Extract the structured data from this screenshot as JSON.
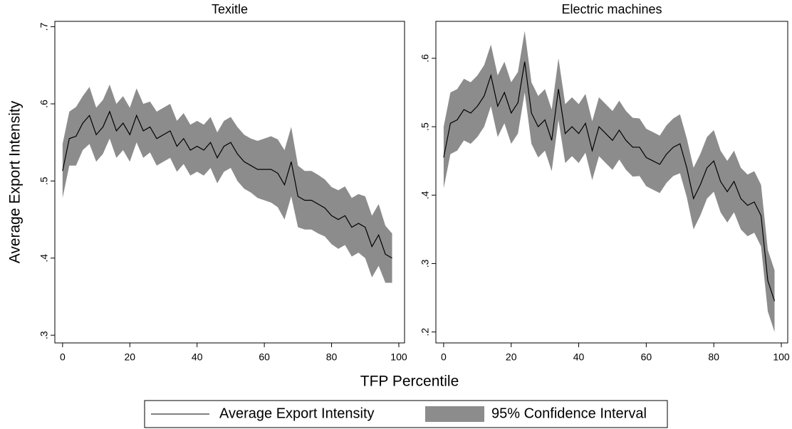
{
  "xlabel": "TFP Percentile",
  "ylabel": "Average Export Intensity",
  "chart_data": [
    {
      "type": "line-band",
      "title": "Texitle",
      "x": [
        0,
        2,
        4,
        6,
        8,
        10,
        12,
        14,
        16,
        18,
        20,
        22,
        24,
        26,
        28,
        30,
        32,
        34,
        36,
        38,
        40,
        42,
        44,
        46,
        48,
        50,
        52,
        54,
        56,
        58,
        60,
        62,
        64,
        66,
        68,
        70,
        72,
        74,
        76,
        78,
        80,
        82,
        84,
        86,
        88,
        90,
        92,
        94,
        96,
        98
      ],
      "series": [
        {
          "name": "Average Export Intensity",
          "color": "#000000",
          "values": [
            0.513,
            0.555,
            0.558,
            0.575,
            0.585,
            0.56,
            0.57,
            0.59,
            0.565,
            0.575,
            0.56,
            0.585,
            0.565,
            0.57,
            0.555,
            0.56,
            0.565,
            0.545,
            0.555,
            0.54,
            0.545,
            0.54,
            0.55,
            0.53,
            0.545,
            0.55,
            0.535,
            0.525,
            0.52,
            0.515,
            0.515,
            0.515,
            0.51,
            0.495,
            0.525,
            0.48,
            0.475,
            0.475,
            0.47,
            0.465,
            0.455,
            0.45,
            0.455,
            0.44,
            0.445,
            0.44,
            0.415,
            0.43,
            0.405,
            0.4
          ]
        },
        {
          "name": "95% Confidence Interval",
          "color": "#8c8c8c",
          "lower": [
            0.478,
            0.52,
            0.52,
            0.54,
            0.548,
            0.525,
            0.535,
            0.555,
            0.53,
            0.54,
            0.525,
            0.55,
            0.53,
            0.537,
            0.52,
            0.525,
            0.53,
            0.512,
            0.522,
            0.507,
            0.512,
            0.507,
            0.517,
            0.497,
            0.512,
            0.517,
            0.5,
            0.49,
            0.485,
            0.478,
            0.475,
            0.472,
            0.466,
            0.45,
            0.48,
            0.44,
            0.437,
            0.437,
            0.432,
            0.428,
            0.418,
            0.412,
            0.417,
            0.402,
            0.407,
            0.4,
            0.375,
            0.39,
            0.368,
            0.368
          ],
          "upper": [
            0.548,
            0.59,
            0.596,
            0.61,
            0.622,
            0.595,
            0.605,
            0.625,
            0.6,
            0.61,
            0.595,
            0.62,
            0.6,
            0.603,
            0.59,
            0.595,
            0.6,
            0.578,
            0.588,
            0.573,
            0.578,
            0.573,
            0.583,
            0.563,
            0.578,
            0.583,
            0.57,
            0.56,
            0.555,
            0.552,
            0.555,
            0.558,
            0.554,
            0.54,
            0.57,
            0.52,
            0.513,
            0.513,
            0.508,
            0.502,
            0.492,
            0.488,
            0.493,
            0.478,
            0.483,
            0.48,
            0.455,
            0.47,
            0.442,
            0.432
          ]
        }
      ],
      "xlim": [
        -2.3,
        101.7
      ],
      "xticks": [
        0,
        20,
        40,
        60,
        80,
        100
      ],
      "ylim": [
        0.29,
        0.707
      ],
      "yticks": [
        {
          "value": 0.3,
          "label": ".3"
        },
        {
          "value": 0.4,
          "label": ".4"
        },
        {
          "value": 0.5,
          "label": ".5"
        },
        {
          "value": 0.6,
          "label": ".6"
        },
        {
          "value": 0.7,
          "label": ".7"
        }
      ]
    },
    {
      "type": "line-band",
      "title": "Electric machines",
      "x": [
        0,
        2,
        4,
        6,
        8,
        10,
        12,
        14,
        16,
        18,
        20,
        22,
        24,
        26,
        28,
        30,
        32,
        34,
        36,
        38,
        40,
        42,
        44,
        46,
        48,
        50,
        52,
        54,
        56,
        58,
        60,
        62,
        64,
        66,
        68,
        70,
        72,
        74,
        76,
        78,
        80,
        82,
        84,
        86,
        88,
        90,
        92,
        94,
        96,
        98
      ],
      "series": [
        {
          "name": "Average Export Intensity",
          "color": "#000000",
          "values": [
            0.455,
            0.505,
            0.51,
            0.525,
            0.52,
            0.53,
            0.545,
            0.575,
            0.53,
            0.55,
            0.52,
            0.535,
            0.595,
            0.52,
            0.5,
            0.51,
            0.48,
            0.555,
            0.49,
            0.5,
            0.49,
            0.505,
            0.465,
            0.5,
            0.49,
            0.48,
            0.495,
            0.48,
            0.47,
            0.47,
            0.455,
            0.45,
            0.445,
            0.46,
            0.47,
            0.475,
            0.44,
            0.395,
            0.415,
            0.44,
            0.45,
            0.42,
            0.405,
            0.42,
            0.395,
            0.385,
            0.39,
            0.37,
            0.275,
            0.245
          ]
        },
        {
          "name": "95% Confidence Interval",
          "color": "#8c8c8c",
          "lower": [
            0.41,
            0.46,
            0.465,
            0.48,
            0.475,
            0.485,
            0.5,
            0.53,
            0.485,
            0.505,
            0.475,
            0.49,
            0.55,
            0.475,
            0.455,
            0.465,
            0.435,
            0.51,
            0.447,
            0.457,
            0.447,
            0.462,
            0.422,
            0.457,
            0.447,
            0.437,
            0.452,
            0.437,
            0.427,
            0.428,
            0.413,
            0.408,
            0.403,
            0.418,
            0.428,
            0.432,
            0.397,
            0.35,
            0.37,
            0.395,
            0.405,
            0.375,
            0.36,
            0.375,
            0.35,
            0.34,
            0.345,
            0.325,
            0.23,
            0.2
          ],
          "upper": [
            0.5,
            0.55,
            0.555,
            0.57,
            0.565,
            0.575,
            0.59,
            0.62,
            0.575,
            0.595,
            0.565,
            0.58,
            0.64,
            0.565,
            0.545,
            0.555,
            0.525,
            0.6,
            0.533,
            0.543,
            0.533,
            0.548,
            0.508,
            0.543,
            0.533,
            0.523,
            0.538,
            0.523,
            0.513,
            0.512,
            0.497,
            0.492,
            0.487,
            0.502,
            0.512,
            0.518,
            0.483,
            0.44,
            0.46,
            0.485,
            0.495,
            0.465,
            0.45,
            0.465,
            0.44,
            0.43,
            0.435,
            0.415,
            0.32,
            0.29
          ]
        }
      ],
      "xlim": [
        -2.3,
        101.9
      ],
      "xticks": [
        0,
        20,
        40,
        60,
        80,
        100
      ],
      "ylim": [
        0.184,
        0.654
      ],
      "yticks": [
        {
          "value": 0.2,
          "label": ".2"
        },
        {
          "value": 0.3,
          "label": ".3"
        },
        {
          "value": 0.4,
          "label": ".4"
        },
        {
          "value": 0.5,
          "label": ".5"
        },
        {
          "value": 0.6,
          "label": ".6"
        }
      ]
    }
  ]
}
